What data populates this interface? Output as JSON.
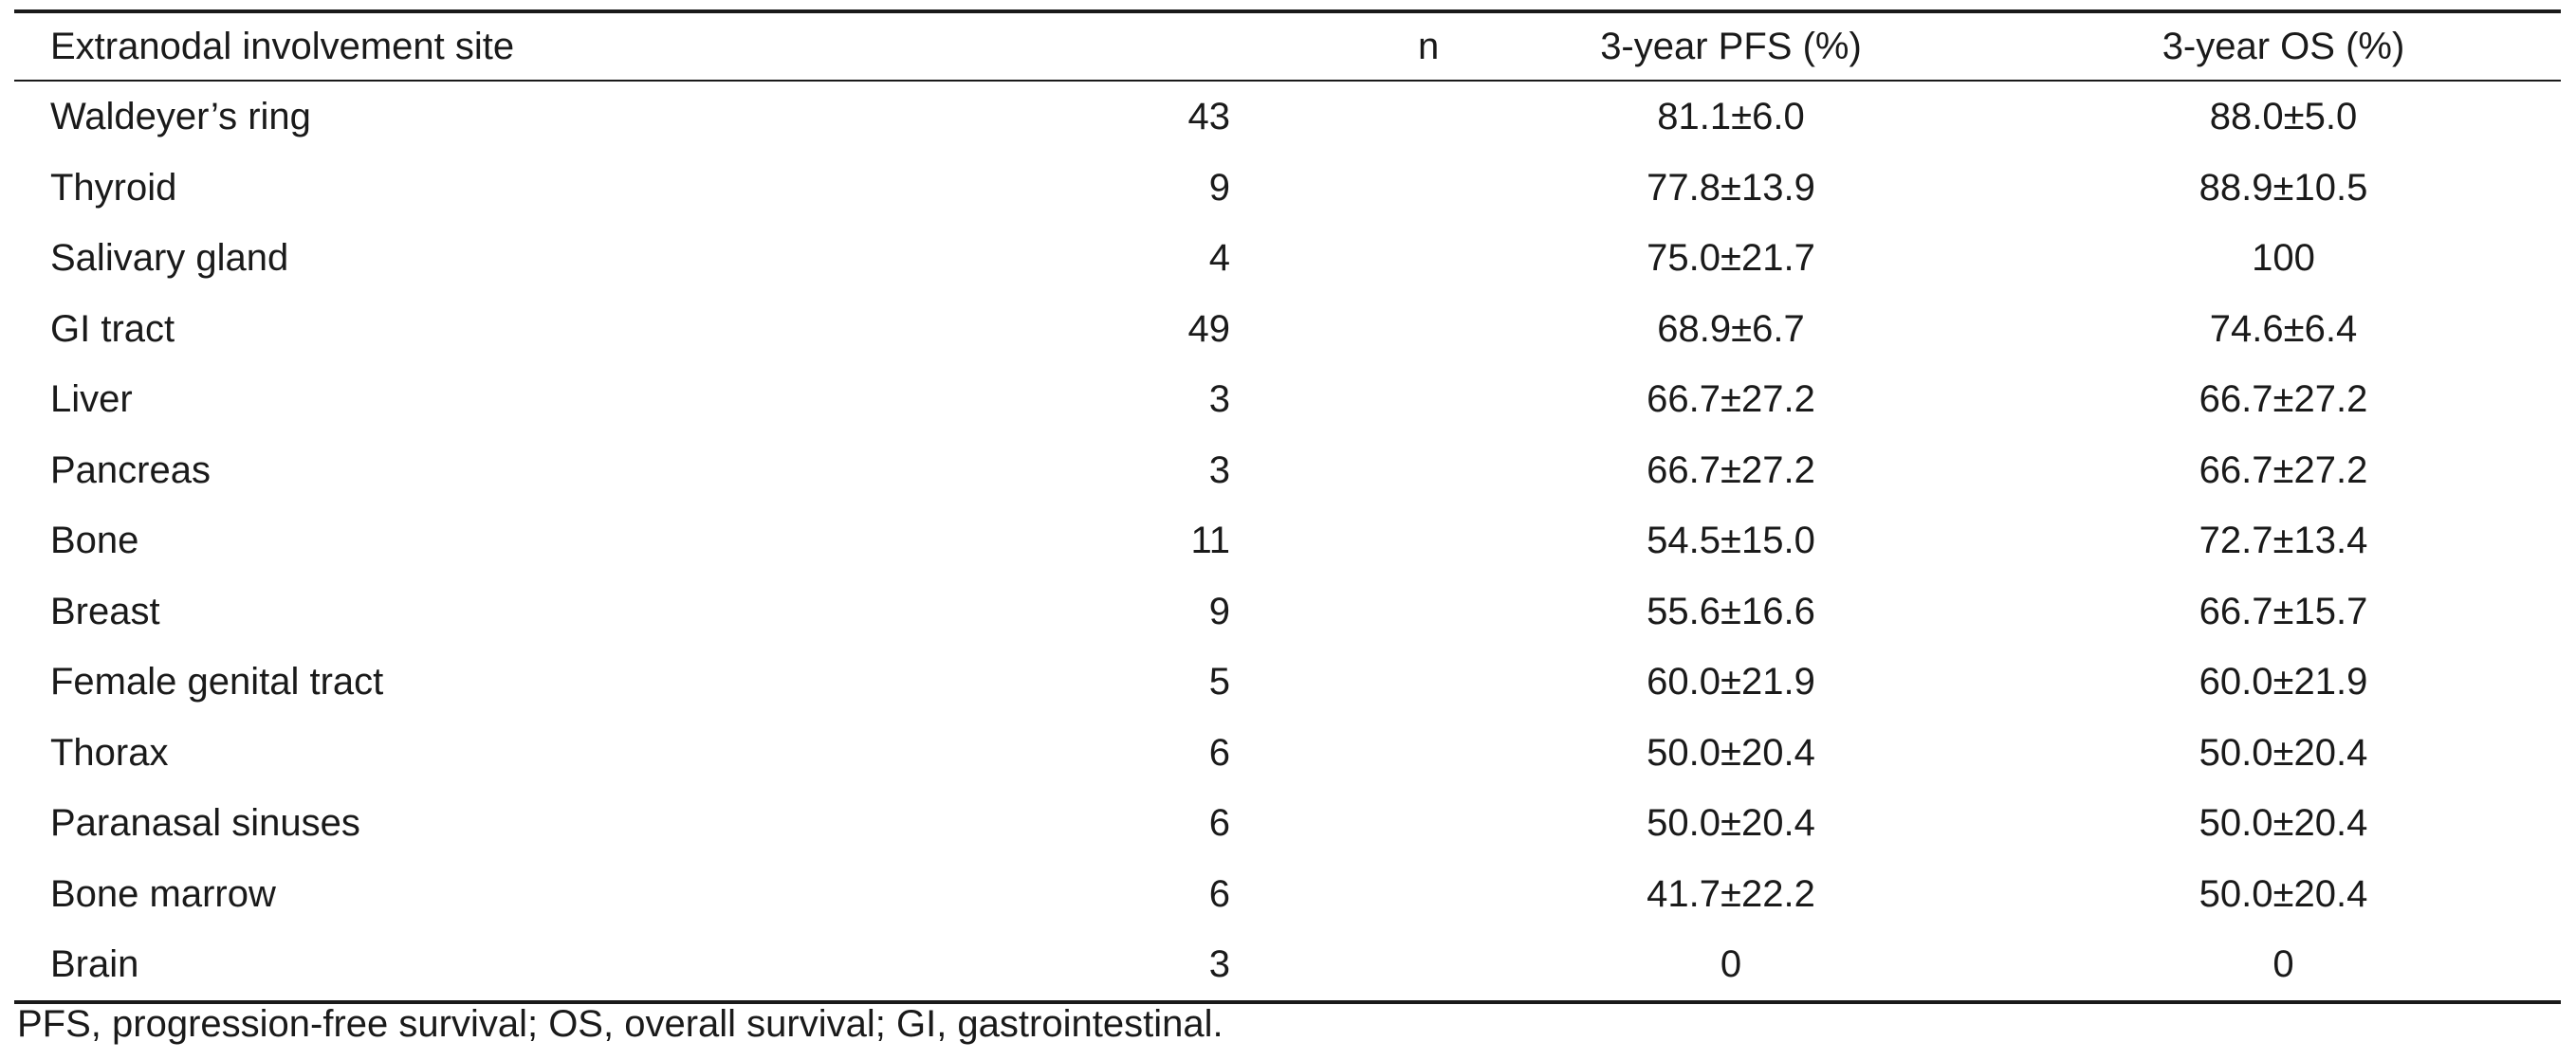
{
  "table": {
    "headers": [
      "Extranodal involvement site",
      "n",
      "3-year PFS (%)",
      "3-year OS (%)"
    ],
    "rows": [
      {
        "site": "Waldeyer’s ring",
        "n": "43",
        "pfs": "81.1±6.0",
        "os": "88.0±5.0"
      },
      {
        "site": "Thyroid",
        "n": "9",
        "pfs": "77.8±13.9",
        "os": "88.9±10.5"
      },
      {
        "site": "Salivary gland",
        "n": "4",
        "pfs": "75.0±21.7",
        "os": "100"
      },
      {
        "site": "GI tract",
        "n": "49",
        "pfs": "68.9±6.7",
        "os": "74.6±6.4"
      },
      {
        "site": "Liver",
        "n": "3",
        "pfs": "66.7±27.2",
        "os": "66.7±27.2"
      },
      {
        "site": "Pancreas",
        "n": "3",
        "pfs": "66.7±27.2",
        "os": "66.7±27.2"
      },
      {
        "site": "Bone",
        "n": "11",
        "pfs": "54.5±15.0",
        "os": "72.7±13.4"
      },
      {
        "site": "Breast",
        "n": "9",
        "pfs": "55.6±16.6",
        "os": "66.7±15.7"
      },
      {
        "site": "Female genital tract",
        "n": "5",
        "pfs": "60.0±21.9",
        "os": "60.0±21.9"
      },
      {
        "site": "Thorax",
        "n": "6",
        "pfs": "50.0±20.4",
        "os": "50.0±20.4"
      },
      {
        "site": "Paranasal sinuses",
        "n": "6",
        "pfs": "50.0±20.4",
        "os": "50.0±20.4"
      },
      {
        "site": "Bone marrow",
        "n": "6",
        "pfs": "41.7±22.2",
        "os": "50.0±20.4"
      },
      {
        "site": "Brain",
        "n": "3",
        "pfs": "0",
        "os": "0"
      }
    ]
  },
  "footnote": "PFS, progression-free survival; OS, overall survival; GI, gastrointestinal."
}
